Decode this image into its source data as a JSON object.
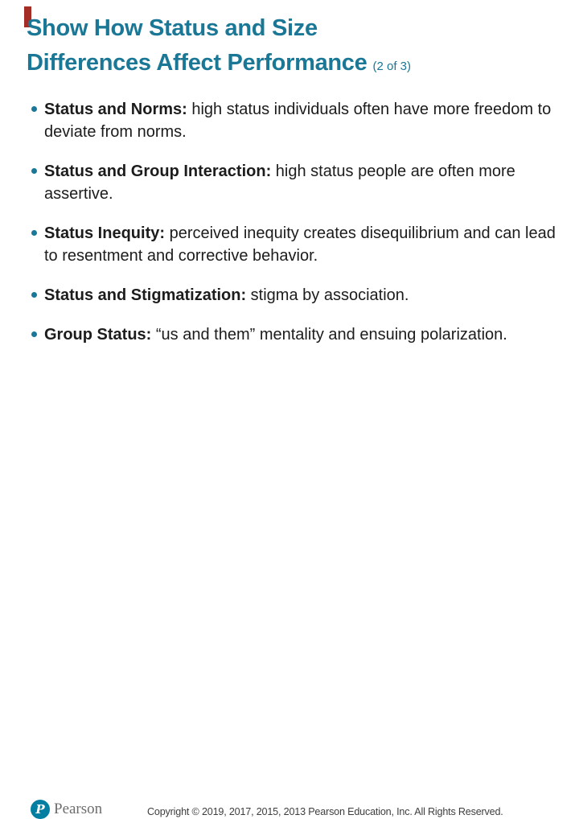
{
  "slide": {
    "colors": {
      "title_teal": "#1a7795",
      "accent_red": "#a42d25",
      "logo_teal": "#007fa3",
      "wordmark_gray": "#6d6d70",
      "body_text": "#1c1c1c",
      "footer_text": "#3e3e3e"
    },
    "title": {
      "line1": "Show How Status and Size",
      "line2": "Differences Affect Performance",
      "suffix": "(2 of 3)"
    },
    "bullets": [
      {
        "lead": "Status and Norms:",
        "rest": " high status individuals often have more freedom to deviate from norms."
      },
      {
        "lead": "Status and Group Interaction:",
        "rest": " high status people are often more assertive."
      },
      {
        "lead": "Status Inequity:",
        "rest": " perceived inequity creates disequilibrium and can lead to resentment and corrective behavior."
      },
      {
        "lead": "Status and Stigmatization:",
        "rest": " stigma by association."
      },
      {
        "lead": "Group Status:",
        "rest": " “us and them” mentality and ensuing polarization."
      }
    ],
    "footer": {
      "logo_letter": "P",
      "logo_text": "Pearson",
      "copyright": "Copyright © 2019, 2017, 2015, 2013 Pearson Education, Inc. All Rights Reserved."
    }
  }
}
